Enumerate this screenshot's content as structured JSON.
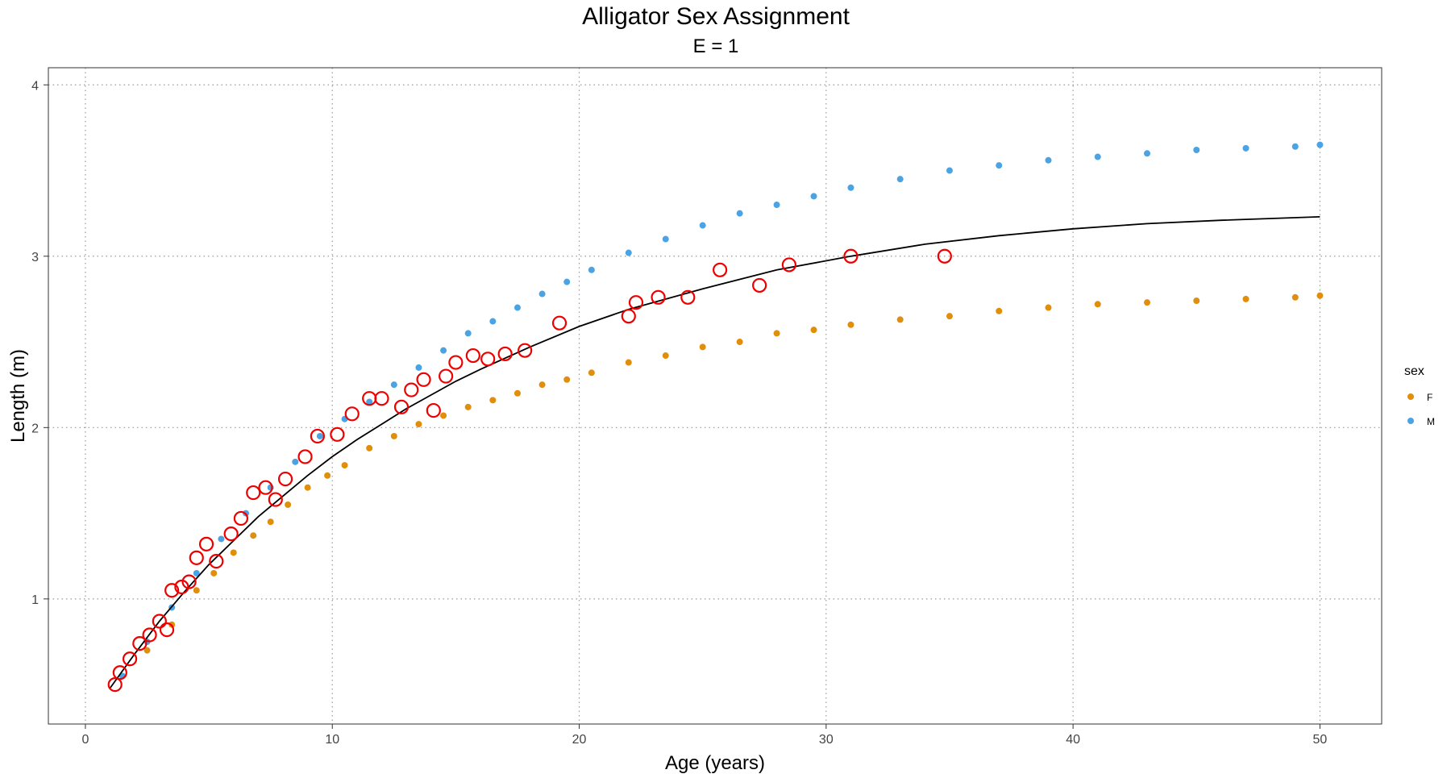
{
  "chart_data": {
    "type": "scatter",
    "title": "Alligator Sex Assignment",
    "subtitle": "E = 1",
    "xlabel": "Age (years)",
    "ylabel": "Length (m)",
    "xlim": [
      -1.5,
      52.5
    ],
    "ylim": [
      0.27,
      4.1
    ],
    "x_ticks": [
      0,
      10,
      20,
      30,
      40,
      50
    ],
    "y_ticks": [
      1,
      2,
      3,
      4
    ],
    "grid": true,
    "grid_style": "dotted",
    "legend": {
      "title": "sex",
      "position": "right",
      "entries": [
        {
          "label": "F",
          "color": "#E08E0B"
        },
        {
          "label": "M",
          "color": "#4BA3E3"
        }
      ]
    },
    "series": [
      {
        "name": "F",
        "color": "#E08E0B",
        "x": [
          2.5,
          3.5,
          4.5,
          5.2,
          6.0,
          6.8,
          7.5,
          8.2,
          9.0,
          9.8,
          10.5,
          11.5,
          12.5,
          13.5,
          14.5,
          15.5,
          16.5,
          17.5,
          18.5,
          19.5,
          20.5,
          22.0,
          23.5,
          25.0,
          26.5,
          28.0,
          29.5,
          31.0,
          33.0,
          35.0,
          37.0,
          39.0,
          41.0,
          43.0,
          45.0,
          47.0,
          49.0,
          50.0
        ],
        "y": [
          0.7,
          0.85,
          1.05,
          1.15,
          1.27,
          1.37,
          1.45,
          1.55,
          1.65,
          1.72,
          1.78,
          1.88,
          1.95,
          2.02,
          2.07,
          2.12,
          2.16,
          2.2,
          2.25,
          2.28,
          2.32,
          2.38,
          2.42,
          2.47,
          2.5,
          2.55,
          2.57,
          2.6,
          2.63,
          2.65,
          2.68,
          2.7,
          2.72,
          2.73,
          2.74,
          2.75,
          2.76,
          2.77
        ]
      },
      {
        "name": "M",
        "color": "#4BA3E3",
        "x": [
          1.5,
          2.5,
          3.5,
          4.5,
          5.5,
          6.5,
          7.5,
          8.5,
          9.5,
          10.5,
          11.5,
          12.5,
          13.5,
          14.5,
          15.5,
          16.5,
          17.5,
          18.5,
          19.5,
          20.5,
          22.0,
          23.5,
          25.0,
          26.5,
          28.0,
          29.5,
          31.0,
          33.0,
          35.0,
          37.0,
          39.0,
          41.0,
          43.0,
          45.0,
          47.0,
          49.0,
          50.0
        ],
        "y": [
          0.55,
          0.75,
          0.95,
          1.15,
          1.35,
          1.5,
          1.65,
          1.8,
          1.95,
          2.05,
          2.15,
          2.25,
          2.35,
          2.45,
          2.55,
          2.62,
          2.7,
          2.78,
          2.85,
          2.92,
          3.02,
          3.1,
          3.18,
          3.25,
          3.3,
          3.35,
          3.4,
          3.45,
          3.5,
          3.53,
          3.56,
          3.58,
          3.6,
          3.62,
          3.63,
          3.64,
          3.65
        ]
      }
    ],
    "fit_line": {
      "color": "#000000",
      "x": [
        1.0,
        2.0,
        3.0,
        4.0,
        5.0,
        6.0,
        7.0,
        8.0,
        9.0,
        10.0,
        11.0,
        12.0,
        13.0,
        14.0,
        15.0,
        16.0,
        18.0,
        20.0,
        22.0,
        25.0,
        28.0,
        31.0,
        34.0,
        37.0,
        40.0,
        43.0,
        46.0,
        50.0
      ],
      "y": [
        0.48,
        0.68,
        0.87,
        1.04,
        1.2,
        1.34,
        1.48,
        1.6,
        1.72,
        1.83,
        1.93,
        2.02,
        2.11,
        2.19,
        2.27,
        2.34,
        2.47,
        2.59,
        2.69,
        2.81,
        2.92,
        3.0,
        3.07,
        3.12,
        3.16,
        3.19,
        3.21,
        3.23
      ]
    },
    "highlighted": {
      "color": "#EE0000",
      "x": [
        1.2,
        1.4,
        1.8,
        2.2,
        2.6,
        3.0,
        3.3,
        3.5,
        3.9,
        4.2,
        4.5,
        4.9,
        5.3,
        5.9,
        6.3,
        6.8,
        7.3,
        7.7,
        8.1,
        8.9,
        9.4,
        10.2,
        10.8,
        11.5,
        12.0,
        12.8,
        13.2,
        13.7,
        14.1,
        14.6,
        15.0,
        15.7,
        16.3,
        17.0,
        17.8,
        19.2,
        22.0,
        22.3,
        23.2,
        24.4,
        25.7,
        27.3,
        28.5,
        31.0,
        34.8
      ],
      "y": [
        0.5,
        0.57,
        0.65,
        0.74,
        0.79,
        0.87,
        0.82,
        1.05,
        1.07,
        1.1,
        1.24,
        1.32,
        1.22,
        1.38,
        1.47,
        1.62,
        1.65,
        1.58,
        1.7,
        1.83,
        1.95,
        1.96,
        2.08,
        2.17,
        2.17,
        2.12,
        2.22,
        2.28,
        2.1,
        2.3,
        2.38,
        2.42,
        2.4,
        2.43,
        2.45,
        2.61,
        2.65,
        2.73,
        2.76,
        2.76,
        2.92,
        2.83,
        2.95,
        3.0,
        3.0
      ]
    }
  }
}
